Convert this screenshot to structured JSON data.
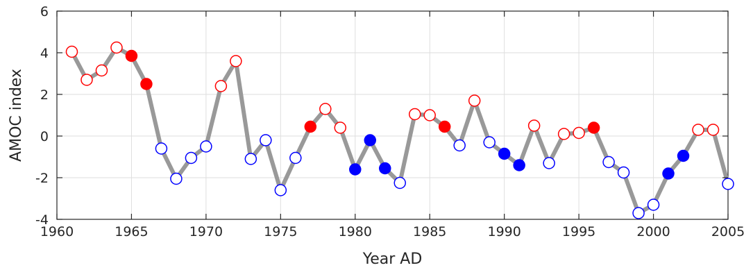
{
  "chart_data": {
    "type": "line",
    "title": "",
    "xlabel": "Year AD",
    "ylabel": "AMOC index",
    "xlim": [
      1960,
      2005
    ],
    "ylim": [
      -4,
      6
    ],
    "xticks": [
      1960,
      1965,
      1970,
      1975,
      1980,
      1985,
      1990,
      1995,
      2000,
      2005
    ],
    "yticks": [
      -4,
      -2,
      0,
      2,
      4,
      6
    ],
    "grid": true,
    "line_color": "#999999",
    "positive_color": "#ff0000",
    "negative_color": "#0000ff",
    "x": [
      1961,
      1962,
      1963,
      1964,
      1965,
      1966,
      1967,
      1968,
      1969,
      1970,
      1971,
      1972,
      1973,
      1974,
      1975,
      1976,
      1977,
      1978,
      1979,
      1980,
      1981,
      1982,
      1983,
      1984,
      1985,
      1986,
      1987,
      1988,
      1989,
      1990,
      1991,
      1992,
      1993,
      1994,
      1995,
      1996,
      1997,
      1998,
      1999,
      2000,
      2001,
      2002,
      2003,
      2004,
      2005
    ],
    "y": [
      4.05,
      2.7,
      3.15,
      4.25,
      3.85,
      2.5,
      -0.6,
      -2.05,
      -1.05,
      -0.5,
      2.4,
      3.6,
      -1.1,
      -0.2,
      -2.6,
      -1.05,
      0.45,
      1.3,
      0.4,
      -1.6,
      -0.2,
      -1.55,
      -2.25,
      1.05,
      1.0,
      0.45,
      -0.45,
      1.7,
      -0.3,
      -0.85,
      -1.4,
      0.5,
      -1.3,
      0.1,
      0.15,
      0.4,
      -1.25,
      -1.75,
      -3.7,
      -3.3,
      -1.8,
      -0.95,
      0.3,
      0.3,
      -2.3
    ],
    "filled": [
      false,
      false,
      false,
      false,
      true,
      true,
      false,
      false,
      false,
      false,
      false,
      false,
      false,
      false,
      false,
      false,
      true,
      false,
      false,
      true,
      true,
      true,
      false,
      false,
      false,
      true,
      false,
      false,
      false,
      true,
      true,
      false,
      false,
      false,
      false,
      true,
      false,
      false,
      false,
      false,
      true,
      true,
      false,
      false,
      false
    ]
  }
}
